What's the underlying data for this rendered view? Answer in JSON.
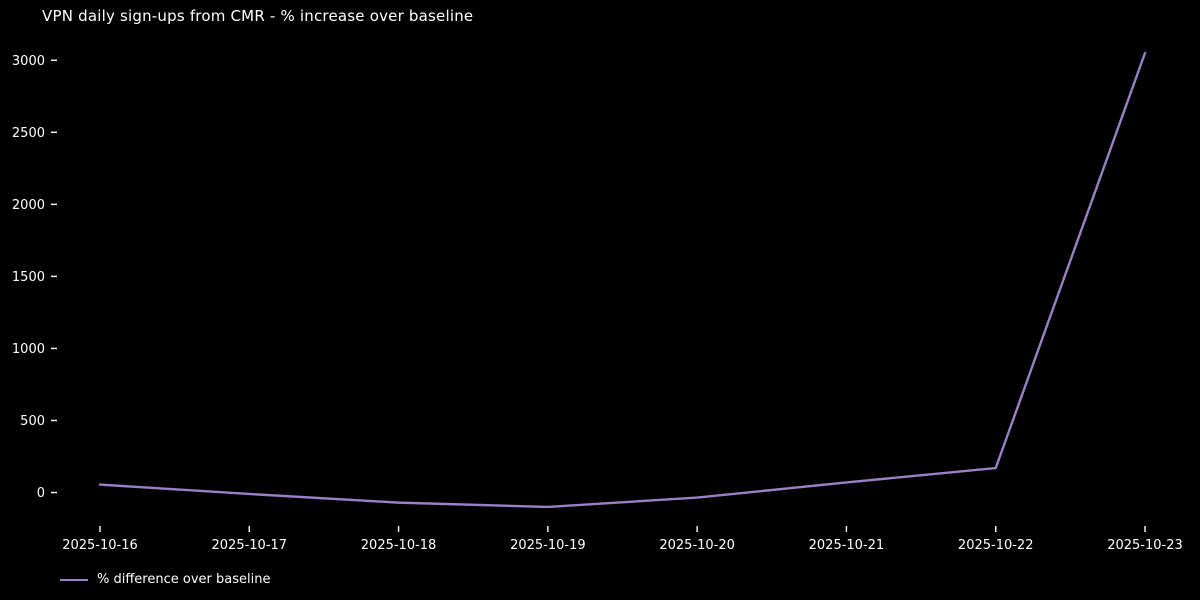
{
  "chart_data": {
    "type": "line",
    "title": "VPN daily sign-ups from CMR - % increase over baseline",
    "xlabel": "",
    "ylabel": "",
    "x": [
      "2025-10-16",
      "2025-10-17",
      "2025-10-18",
      "2025-10-19",
      "2025-10-20",
      "2025-10-21",
      "2025-10-22",
      "2025-10-23"
    ],
    "series": [
      {
        "name": "% difference over baseline",
        "color": "#9b7fc7",
        "values": [
          55,
          -10,
          -70,
          -100,
          -35,
          70,
          170,
          3050
        ]
      }
    ],
    "yticks": [
      0,
      500,
      1000,
      1500,
      2000,
      2500,
      3000
    ],
    "ylim": [
      -260,
      3210
    ],
    "grid": false,
    "legend_position": "lower-left",
    "background_color": "#000000",
    "text_color": "#ffffff"
  }
}
